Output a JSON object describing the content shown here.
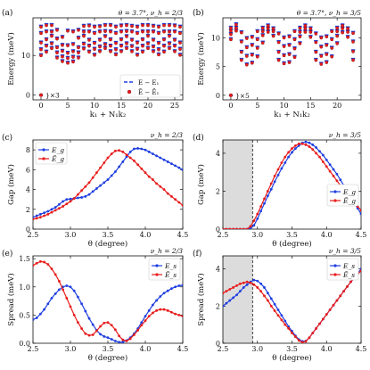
{
  "colors": {
    "blue": "#1f3fe0",
    "red": "#e81c1c",
    "shade": "#dcdcdc",
    "axis": "#111111"
  },
  "chart_data": [
    {
      "id": "a",
      "type": "scatter",
      "panel_label": "(a)",
      "header": "θ = 3.7°, ν_h = 2/3",
      "xlabel": "k₁ + N₁k₂",
      "ylabel": "Energy (meV)",
      "xlim": [
        -1.5,
        26.5
      ],
      "ylim": [
        -1.2,
        19.5
      ],
      "xticks": [
        0,
        5,
        10,
        15,
        20,
        25
      ],
      "yticks": [
        0,
        10
      ],
      "legend": [
        "E − E₁",
        "Ẽ − Ẽ₁"
      ],
      "legend_pos": "bottom-right",
      "multiplicity_label": "}×3",
      "ground": [
        0,
        0
      ],
      "levels": [
        [
          10.4,
          11.9,
          13.6,
          16.0,
          17.6
        ],
        [
          11.3,
          12.8,
          14.4,
          16.4,
          18.0
        ],
        [
          12.2,
          13.4,
          15.3,
          16.4,
          18.0
        ],
        [
          9.8,
          11.1,
          12.4,
          14.6,
          16.8
        ],
        [
          8.9,
          10.1,
          11.5,
          13.0,
          15.0
        ],
        [
          8.5,
          9.7,
          11.0,
          12.9,
          16.6
        ],
        [
          8.8,
          10.0,
          11.4,
          13.2,
          16.4
        ],
        [
          9.8,
          11.1,
          12.4,
          14.8,
          16.8
        ],
        [
          12.1,
          13.3,
          15.3,
          16.4,
          17.8
        ],
        [
          11.3,
          12.8,
          14.3,
          16.4,
          17.9
        ],
        [
          10.5,
          12.0,
          13.5,
          16.0,
          17.6
        ],
        [
          11.4,
          12.6,
          14.3,
          16.4,
          17.7
        ],
        [
          12.2,
          13.2,
          15.2,
          16.5,
          18.0
        ],
        [
          11.4,
          12.8,
          14.4,
          16.4,
          18.0
        ],
        [
          10.6,
          11.9,
          13.5,
          16.0,
          17.6
        ],
        [
          11.4,
          12.8,
          14.4,
          16.4,
          17.9
        ],
        [
          12.2,
          13.4,
          15.2,
          16.5,
          18.0
        ],
        [
          11.4,
          12.7,
          14.3,
          16.4,
          17.8
        ],
        [
          10.5,
          12.0,
          13.6,
          16.0,
          17.6
        ],
        [
          11.3,
          12.8,
          14.4,
          16.4,
          18.0
        ],
        [
          12.2,
          13.4,
          15.3,
          16.4,
          18.0
        ],
        [
          11.4,
          12.6,
          14.3,
          16.4,
          17.8
        ],
        [
          10.6,
          11.9,
          13.5,
          16.0,
          17.6
        ],
        [
          11.3,
          12.8,
          14.4,
          16.4,
          18.0
        ],
        [
          12.2,
          13.4,
          15.3,
          16.4,
          18.0
        ],
        [
          11.4,
          12.8,
          14.3,
          16.4,
          17.9
        ],
        [
          10.5,
          12.0,
          13.6,
          16.0,
          17.6
        ]
      ]
    },
    {
      "id": "b",
      "type": "scatter",
      "panel_label": "(b)",
      "header": "θ = 3.7°, ν_h = 3/5",
      "xlabel": "k₁ + N₁k₂",
      "ylabel": "Energy (meV)",
      "xlim": [
        -1.5,
        24.5
      ],
      "ylim": [
        -0.8,
        13.5
      ],
      "xticks": [
        0,
        5,
        10,
        15,
        20
      ],
      "yticks": [
        0,
        5,
        10
      ],
      "multiplicity_label": "}×5",
      "ground": [
        0,
        0
      ],
      "levels": [
        [
          10.0,
          10.9,
          11.5,
          12.0
        ],
        [
          11.5,
          12.0,
          12.6
        ],
        [
          6.4,
          7.8,
          9.6,
          11.2
        ],
        [
          5.6,
          7.1,
          8.6,
          10.2
        ],
        [
          5.9,
          7.3,
          9.0,
          10.4
        ],
        [
          7.0,
          8.5,
          10.0,
          11.4
        ],
        [
          9.4,
          10.7,
          11.4,
          12.0
        ],
        [
          11.3,
          11.9,
          12.4
        ],
        [
          10.6,
          11.4,
          11.9
        ],
        [
          6.4,
          7.8,
          9.5,
          11.0
        ],
        [
          5.8,
          7.2,
          8.8,
          10.3
        ],
        [
          6.0,
          7.4,
          9.0,
          10.5
        ],
        [
          6.9,
          8.4,
          10.0,
          11.4
        ],
        [
          9.3,
          10.5,
          11.3,
          12.0
        ],
        [
          11.3,
          11.9,
          12.4
        ],
        [
          10.4,
          11.3,
          11.9
        ],
        [
          6.4,
          7.8,
          9.5,
          11.0
        ],
        [
          5.7,
          7.1,
          8.7,
          10.3
        ],
        [
          6.0,
          7.4,
          9.0,
          10.5
        ],
        [
          7.0,
          8.5,
          10.0,
          11.4
        ],
        [
          9.3,
          10.6,
          11.4,
          12.0
        ],
        [
          11.2,
          11.9,
          12.4
        ],
        [
          10.4,
          11.3,
          11.9
        ],
        [
          6.4,
          7.9,
          9.6,
          11.1
        ]
      ]
    },
    {
      "id": "c",
      "type": "line",
      "panel_label": "(c)",
      "header": "ν_h = 2/3",
      "xlabel": "θ (degree)",
      "ylabel": "Gap (meV)",
      "xlim": [
        2.5,
        4.5
      ],
      "ylim": [
        0,
        9
      ],
      "xticks": [
        2.5,
        3.0,
        3.5,
        4.0,
        4.5
      ],
      "yticks": [
        0,
        2,
        4,
        6,
        8
      ],
      "legend_pos": "top-left",
      "x": [
        2.5,
        2.55,
        2.6,
        2.65,
        2.7,
        2.75,
        2.8,
        2.85,
        2.9,
        2.95,
        3.0,
        3.05,
        3.1,
        3.15,
        3.2,
        3.25,
        3.3,
        3.35,
        3.4,
        3.45,
        3.5,
        3.55,
        3.6,
        3.65,
        3.7,
        3.75,
        3.8,
        3.85,
        3.9,
        3.95,
        4.0,
        4.05,
        4.1,
        4.15,
        4.2,
        4.25,
        4.3,
        4.35,
        4.4,
        4.45,
        4.5
      ],
      "series": [
        {
          "name": "E_g",
          "color_key": "blue",
          "values": [
            1.2,
            1.35,
            1.5,
            1.65,
            1.8,
            2.0,
            2.2,
            2.5,
            2.8,
            3.0,
            3.05,
            3.1,
            3.15,
            3.2,
            3.3,
            3.5,
            3.8,
            4.1,
            4.4,
            4.7,
            5.0,
            5.4,
            5.8,
            6.3,
            6.8,
            7.3,
            7.8,
            8.1,
            8.15,
            8.1,
            8.0,
            7.8,
            7.6,
            7.4,
            7.2,
            7.0,
            6.8,
            6.6,
            6.4,
            6.2,
            6.0
          ]
        },
        {
          "name": "Ẽ_g",
          "color_key": "red",
          "values": [
            1.0,
            1.1,
            1.2,
            1.35,
            1.5,
            1.7,
            1.9,
            2.1,
            2.3,
            2.55,
            2.8,
            3.1,
            3.5,
            3.9,
            4.3,
            4.7,
            5.2,
            5.7,
            6.2,
            6.7,
            7.2,
            7.6,
            7.9,
            7.95,
            7.8,
            7.5,
            7.2,
            6.9,
            6.5,
            6.1,
            5.7,
            5.3,
            5.0,
            4.6,
            4.3,
            4.0,
            3.6,
            3.3,
            3.0,
            2.7,
            2.4
          ]
        }
      ]
    },
    {
      "id": "d",
      "type": "line",
      "panel_label": "(d)",
      "header": "ν_h = 3/5",
      "xlabel": "θ (degree)",
      "ylabel": "Gap (meV)",
      "xlim": [
        2.5,
        4.5
      ],
      "ylim": [
        0,
        4.7
      ],
      "xticks": [
        2.5,
        3.0,
        3.5,
        4.0,
        4.5
      ],
      "yticks": [
        0,
        2,
        4
      ],
      "shade": [
        2.5,
        2.93
      ],
      "vline": 2.93,
      "legend_pos": "center-right",
      "x": [
        2.5,
        2.55,
        2.6,
        2.65,
        2.7,
        2.75,
        2.8,
        2.85,
        2.9,
        2.95,
        3.0,
        3.05,
        3.1,
        3.15,
        3.2,
        3.25,
        3.3,
        3.35,
        3.4,
        3.45,
        3.5,
        3.55,
        3.6,
        3.65,
        3.7,
        3.75,
        3.8,
        3.85,
        3.9,
        3.95,
        4.0,
        4.05,
        4.1,
        4.15,
        4.2,
        4.25,
        4.3,
        4.35,
        4.4,
        4.45,
        4.5
      ],
      "series": [
        {
          "name": "E_g",
          "color_key": "blue",
          "values": [
            0,
            0,
            0,
            0,
            0,
            0,
            0,
            0,
            0.05,
            0.2,
            0.55,
            0.95,
            1.35,
            1.75,
            2.1,
            2.5,
            2.85,
            3.2,
            3.5,
            3.8,
            4.05,
            4.25,
            4.4,
            4.55,
            4.6,
            4.55,
            4.45,
            4.3,
            4.1,
            3.9,
            3.65,
            3.4,
            3.15,
            2.9,
            2.6,
            2.3,
            2.0,
            1.7,
            1.4,
            1.1,
            0.8
          ]
        },
        {
          "name": "Ẽ_g",
          "color_key": "red",
          "values": [
            0,
            0,
            0,
            0,
            0,
            0,
            0,
            0,
            0.15,
            0.45,
            0.8,
            1.2,
            1.6,
            2.0,
            2.4,
            2.8,
            3.15,
            3.5,
            3.8,
            4.05,
            4.25,
            4.4,
            4.5,
            4.5,
            4.45,
            4.35,
            4.2,
            4.0,
            3.8,
            3.55,
            3.3,
            3.05,
            2.8,
            2.55,
            2.3,
            2.05,
            1.8,
            1.6,
            1.4,
            1.2,
            1.0
          ]
        }
      ]
    },
    {
      "id": "e",
      "type": "line",
      "panel_label": "(e)",
      "header": "ν_h = 2/3",
      "xlabel": "θ (degree)",
      "ylabel": "Spread (meV)",
      "xlim": [
        2.5,
        4.5
      ],
      "ylim": [
        0,
        1.55
      ],
      "xticks": [
        2.5,
        3.0,
        3.5,
        4.0,
        4.5
      ],
      "yticks": [
        0.0,
        0.5,
        1.0,
        1.5
      ],
      "legend_pos": "top-right",
      "x": [
        2.5,
        2.55,
        2.6,
        2.65,
        2.7,
        2.75,
        2.8,
        2.85,
        2.9,
        2.95,
        3.0,
        3.05,
        3.1,
        3.15,
        3.2,
        3.25,
        3.3,
        3.35,
        3.4,
        3.45,
        3.5,
        3.55,
        3.6,
        3.65,
        3.7,
        3.75,
        3.8,
        3.85,
        3.9,
        3.95,
        4.0,
        4.05,
        4.1,
        4.15,
        4.2,
        4.25,
        4.3,
        4.35,
        4.4,
        4.45,
        4.5
      ],
      "series": [
        {
          "name": "E_s",
          "color_key": "blue",
          "values": [
            0.42,
            0.45,
            0.52,
            0.6,
            0.7,
            0.8,
            0.88,
            0.95,
            1.0,
            1.02,
            1.0,
            0.93,
            0.82,
            0.7,
            0.57,
            0.44,
            0.33,
            0.23,
            0.16,
            0.12,
            0.1,
            0.07,
            0.04,
            0.02,
            0.02,
            0.05,
            0.1,
            0.17,
            0.26,
            0.37,
            0.48,
            0.58,
            0.68,
            0.76,
            0.83,
            0.89,
            0.93,
            0.97,
            1.0,
            1.02,
            1.03
          ]
        },
        {
          "name": "Ẽ_s",
          "color_key": "red",
          "values": [
            1.38,
            1.42,
            1.45,
            1.44,
            1.4,
            1.32,
            1.22,
            1.1,
            0.95,
            0.8,
            0.65,
            0.5,
            0.37,
            0.26,
            0.17,
            0.14,
            0.15,
            0.22,
            0.3,
            0.36,
            0.37,
            0.32,
            0.24,
            0.13,
            0.06,
            0.04,
            0.08,
            0.15,
            0.23,
            0.32,
            0.4,
            0.48,
            0.54,
            0.58,
            0.6,
            0.6,
            0.58,
            0.55,
            0.52,
            0.5,
            0.48
          ]
        }
      ]
    },
    {
      "id": "f",
      "type": "line",
      "panel_label": "(f)",
      "header": "ν_h = 3/5",
      "xlabel": "θ (degree)",
      "ylabel": "Spread (meV)",
      "xlim": [
        2.5,
        4.5
      ],
      "ylim": [
        0,
        4.7
      ],
      "xticks": [
        2.5,
        3.0,
        3.5,
        4.0,
        4.5
      ],
      "yticks": [
        0,
        2,
        4
      ],
      "shade": [
        2.5,
        2.93
      ],
      "vline": 2.93,
      "legend_pos": "top-right",
      "x": [
        2.5,
        2.55,
        2.6,
        2.65,
        2.7,
        2.75,
        2.8,
        2.85,
        2.9,
        2.95,
        3.0,
        3.05,
        3.1,
        3.15,
        3.2,
        3.25,
        3.3,
        3.35,
        3.4,
        3.45,
        3.5,
        3.55,
        3.6,
        3.65,
        3.7,
        3.75,
        3.8,
        3.85,
        3.9,
        3.95,
        4.0,
        4.05,
        4.1,
        4.15,
        4.2,
        4.25,
        4.3,
        4.35,
        4.4,
        4.45,
        4.5
      ],
      "series": [
        {
          "name": "E_s",
          "color_key": "blue",
          "values": [
            2.0,
            2.15,
            2.3,
            2.45,
            2.6,
            2.8,
            3.0,
            3.15,
            3.3,
            3.4,
            3.35,
            3.2,
            3.0,
            2.7,
            2.4,
            2.1,
            1.8,
            1.5,
            1.2,
            0.9,
            0.65,
            0.4,
            0.2,
            0.1,
            0.12,
            0.3,
            0.55,
            0.8,
            1.05,
            1.3,
            1.55,
            1.8,
            2.05,
            2.3,
            2.55,
            2.8,
            3.05,
            3.3,
            3.5,
            3.75,
            4.0
          ]
        },
        {
          "name": "Ẽ_s",
          "color_key": "red",
          "values": [
            2.7,
            2.8,
            2.9,
            3.0,
            3.1,
            3.2,
            3.25,
            3.3,
            3.25,
            3.15,
            3.0,
            2.8,
            2.55,
            2.3,
            2.0,
            1.75,
            1.5,
            1.25,
            1.0,
            0.8,
            0.55,
            0.35,
            0.15,
            0.05,
            0.1,
            0.3,
            0.55,
            0.8,
            1.05,
            1.3,
            1.55,
            1.8,
            2.05,
            2.3,
            2.55,
            2.8,
            3.05,
            3.3,
            3.5,
            3.7,
            3.9
          ]
        }
      ]
    }
  ]
}
